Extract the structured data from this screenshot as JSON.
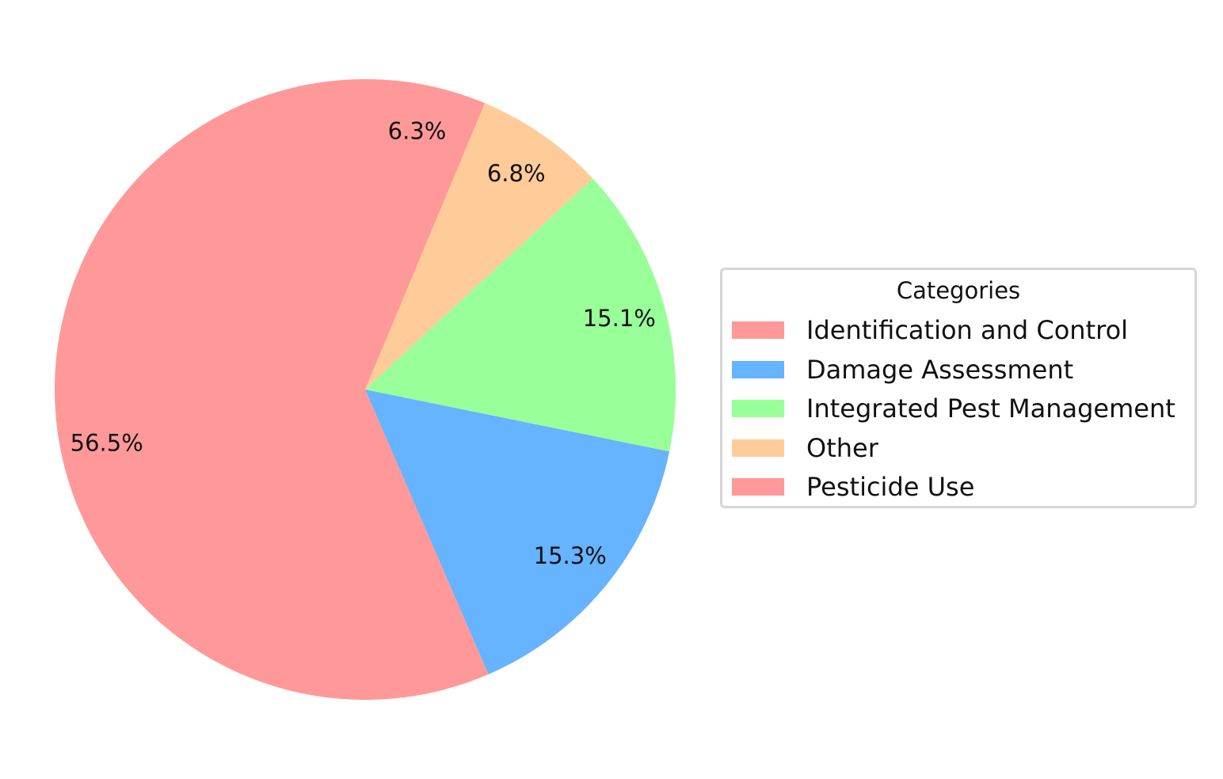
{
  "chart_data": {
    "type": "pie",
    "legend_title": "Categories",
    "legend_position": "right",
    "start_angle": 90,
    "direction": "counterclockwise",
    "labels": [
      "Identification and Control",
      "Damage Assessment",
      "Integrated Pest Management",
      "Other",
      "Pesticide Use"
    ],
    "values": [
      56.5,
      15.3,
      15.1,
      6.8,
      6.3
    ],
    "value_labels": [
      "56.5%",
      "15.3%",
      "15.1%",
      "6.8%",
      "6.3%"
    ],
    "colors": [
      "#ff9999",
      "#66b3ff",
      "#99ff99",
      "#ffcc99",
      "#ff9999"
    ]
  }
}
